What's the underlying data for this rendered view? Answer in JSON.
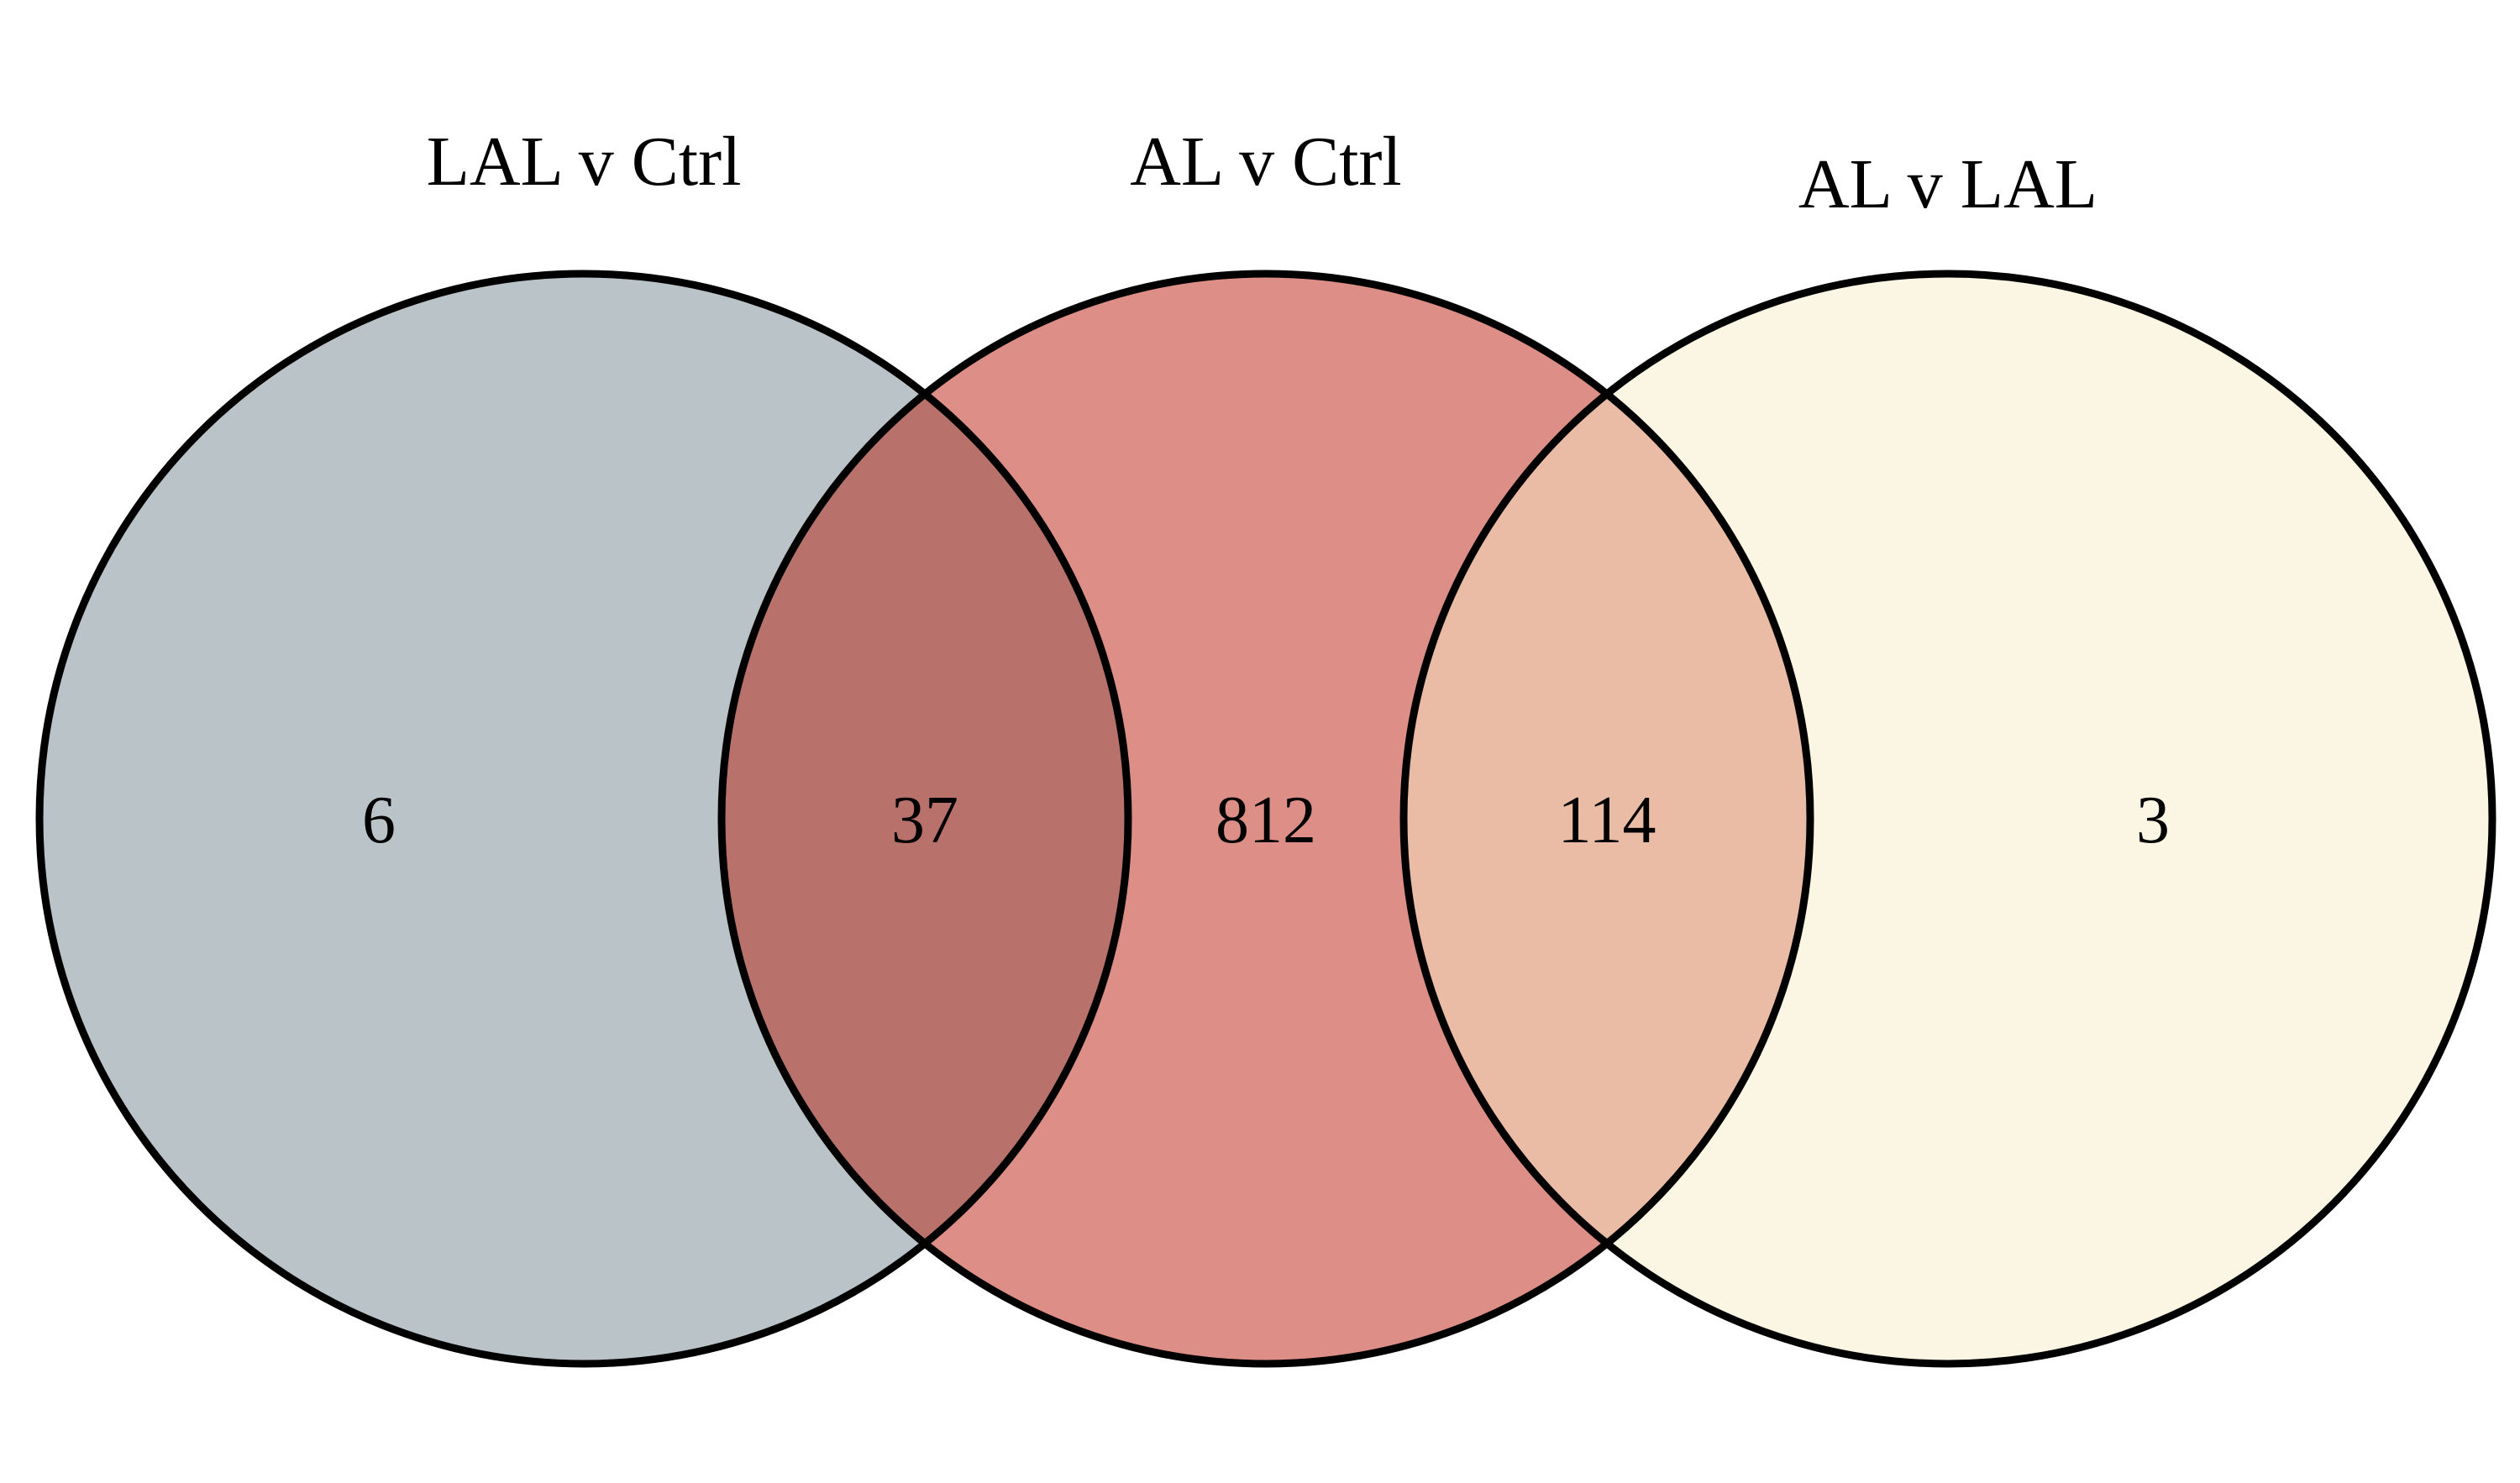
{
  "venn": {
    "sets": [
      {
        "name": "LAL v Ctrl",
        "color": "#bac3c8"
      },
      {
        "name": "AL v Ctrl",
        "color": "#dc8e87"
      },
      {
        "name": "AL v LAL",
        "color": "#fbf5e4"
      }
    ],
    "regions": [
      {
        "sets": [
          "LAL v Ctrl"
        ],
        "count": "6"
      },
      {
        "sets": [
          "LAL v Ctrl",
          "AL v Ctrl"
        ],
        "count": "37",
        "color": "#b8726b"
      },
      {
        "sets": [
          "AL v Ctrl"
        ],
        "count": "812"
      },
      {
        "sets": [
          "AL v Ctrl",
          "AL v LAL"
        ],
        "count": "114",
        "color": "#eabca6"
      },
      {
        "sets": [
          "AL v LAL"
        ],
        "count": "3"
      }
    ]
  }
}
